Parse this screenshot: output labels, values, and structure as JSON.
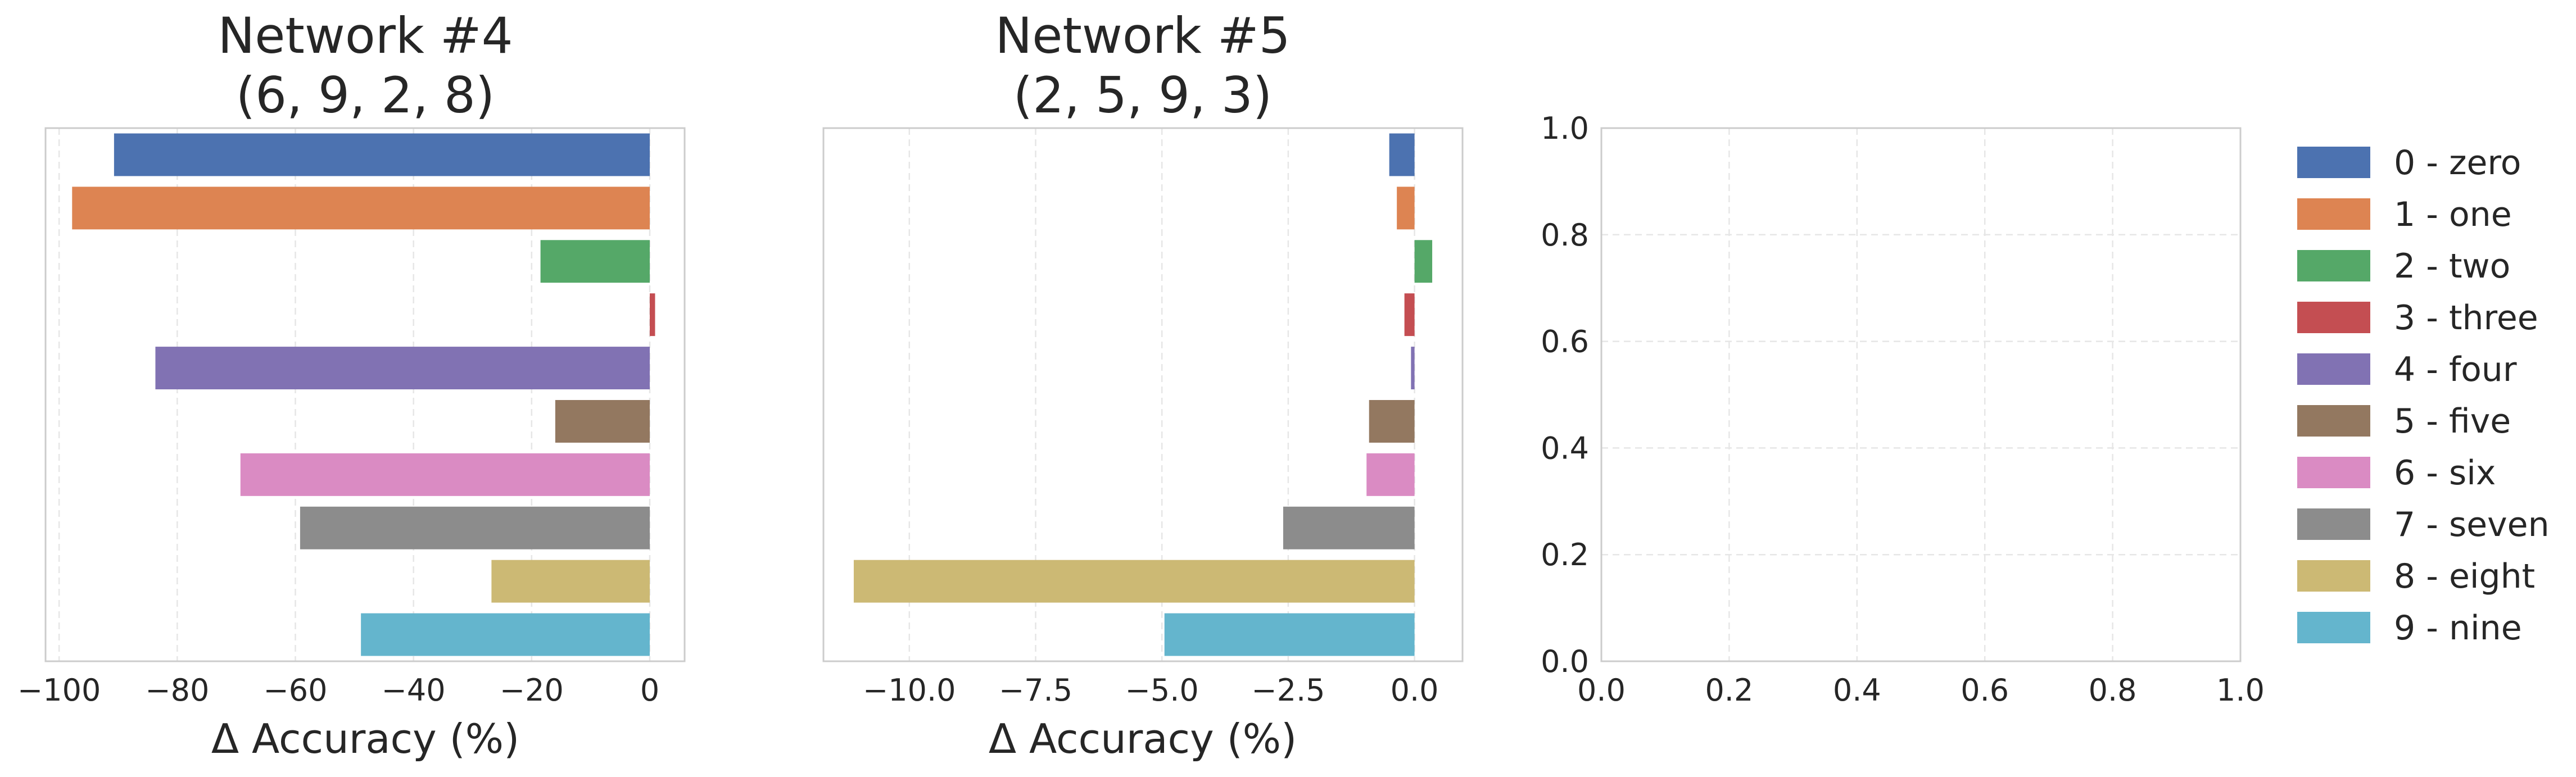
{
  "chart_data": [
    {
      "type": "bar",
      "orientation": "horizontal",
      "title": [
        "Network #4",
        "(6, 9, 2, 8)"
      ],
      "xlabel": "Δ Accuracy (%)",
      "ylabel": "",
      "categories": [
        "0 - zero",
        "1 - one",
        "2 - two",
        "3 - three",
        "4 - four",
        "5 - five",
        "6 - six",
        "7 - seven",
        "8 - eight",
        "9 - nine"
      ],
      "values": [
        -90.7,
        -97.8,
        -18.5,
        0.9,
        -83.7,
        -16.0,
        -69.3,
        -59.2,
        -26.8,
        -48.9
      ],
      "xlim": [
        -102.3,
        5.9
      ],
      "xticks": [
        -100,
        -80,
        -60,
        -40,
        -20,
        0
      ],
      "xtick_labels": [
        "−100",
        "−80",
        "−60",
        "−40",
        "−20",
        "0"
      ],
      "grid": true
    },
    {
      "type": "bar",
      "orientation": "horizontal",
      "title": [
        "Network #5",
        "(2, 5, 9, 3)"
      ],
      "xlabel": "Δ Accuracy (%)",
      "ylabel": "",
      "categories": [
        "0 - zero",
        "1 - one",
        "2 - two",
        "3 - three",
        "4 - four",
        "5 - five",
        "6 - six",
        "7 - seven",
        "8 - eight",
        "9 - nine"
      ],
      "values": [
        -0.5,
        -0.35,
        0.35,
        -0.2,
        -0.07,
        -0.9,
        -0.95,
        -2.6,
        -11.1,
        -4.95
      ],
      "xlim": [
        -11.7,
        0.95
      ],
      "xticks": [
        -10.0,
        -7.5,
        -5.0,
        -2.5,
        0.0
      ],
      "xtick_labels": [
        "−10.0",
        "−7.5",
        "−5.0",
        "−2.5",
        "0.0"
      ],
      "grid": true
    },
    {
      "type": "scatter",
      "title": "",
      "xlabel": "",
      "ylabel": "",
      "series": [],
      "xlim": [
        0.0,
        1.0
      ],
      "ylim": [
        0.0,
        1.0
      ],
      "xticks": [
        "0.0",
        "0.2",
        "0.4",
        "0.6",
        "0.8",
        "1.0"
      ],
      "yticks": [
        "0.0",
        "0.2",
        "0.4",
        "0.6",
        "0.8",
        "1.0"
      ],
      "grid": true
    }
  ],
  "legend": {
    "placement": "right",
    "entries": [
      "0 - zero",
      "1 - one",
      "2 - two",
      "3 - three",
      "4 - four",
      "5 - five",
      "6 - six",
      "7 - seven",
      "8 - eight",
      "9 - nine"
    ]
  },
  "colors": [
    "#4c72b0",
    "#dd8452",
    "#55a868",
    "#c44e52",
    "#8172b3",
    "#937860",
    "#da8bc3",
    "#8c8c8c",
    "#ccb974",
    "#64b5cd"
  ],
  "style": {
    "grid_color": "#e6e6e6",
    "spine_color": "#cccccc",
    "text_color": "#262626"
  }
}
